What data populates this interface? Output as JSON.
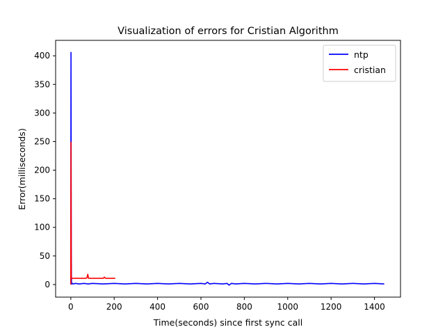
{
  "chart_data": {
    "type": "line",
    "title": "Visualization of errors for Cristian Algorithm",
    "xlabel": "Time(seconds) since first sync call",
    "ylabel": "Error(milliseconds)",
    "xlim": [
      -70,
      1520
    ],
    "ylim": [
      -22,
      427
    ],
    "xticks": [
      0,
      200,
      400,
      600,
      800,
      1000,
      1200,
      1400
    ],
    "yticks": [
      0,
      50,
      100,
      150,
      200,
      250,
      300,
      350,
      400
    ],
    "grid": false,
    "legend_position": "top-right",
    "series": [
      {
        "name": "ntp",
        "color": "#0000ff",
        "x": [
          0,
          1,
          2,
          3,
          5,
          8,
          12,
          20,
          40,
          60,
          80,
          100,
          150,
          200,
          250,
          300,
          350,
          400,
          450,
          500,
          550,
          600,
          620,
          630,
          640,
          660,
          700,
          720,
          730,
          740,
          760,
          800,
          850,
          900,
          950,
          1000,
          1050,
          1100,
          1150,
          1200,
          1250,
          1300,
          1350,
          1400,
          1445
        ],
        "y": [
          0,
          406,
          50,
          3,
          1,
          2,
          1,
          2,
          1,
          2,
          1,
          2,
          1,
          2,
          1,
          2,
          1,
          2,
          1,
          2,
          1,
          2,
          1,
          4,
          1,
          2,
          1,
          2,
          -1,
          2,
          1,
          2,
          1,
          2,
          1,
          2,
          1,
          2,
          1,
          2,
          1,
          2,
          1,
          2,
          1
        ]
      },
      {
        "name": "cristian",
        "color": "#ff0000",
        "x": [
          0,
          1,
          2,
          4,
          10,
          20,
          40,
          60,
          70,
          75,
          78,
          82,
          90,
          110,
          130,
          150,
          155,
          160,
          170,
          185,
          200,
          205
        ],
        "y": [
          0,
          249,
          11,
          11,
          11,
          11,
          11,
          11,
          11,
          12,
          18,
          11,
          11,
          11,
          11,
          11,
          13,
          11,
          11,
          11,
          11,
          11
        ]
      }
    ]
  }
}
